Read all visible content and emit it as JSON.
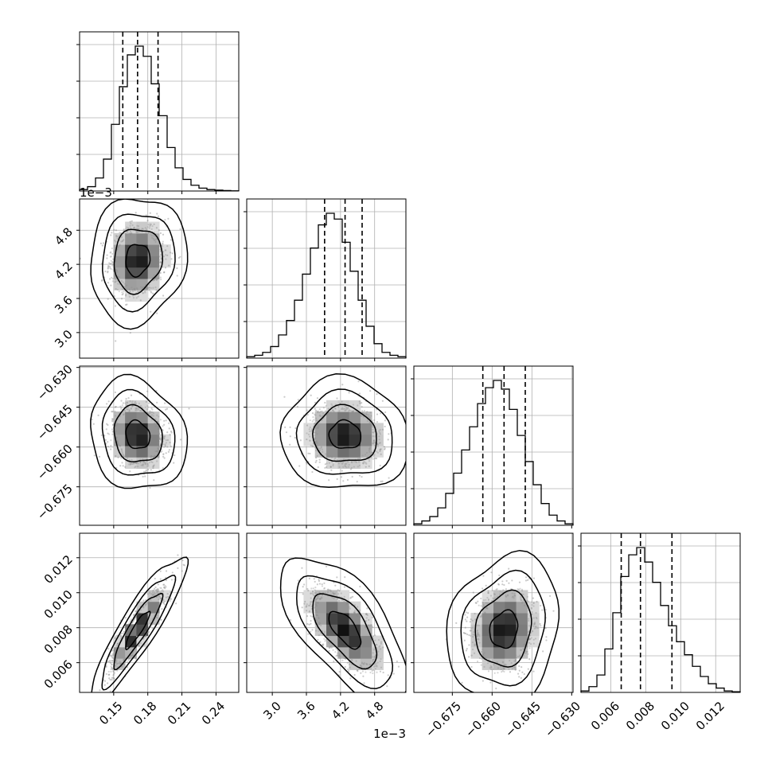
{
  "chart_data": {
    "type": "corner",
    "parameters": [
      {
        "range": [
          0.12,
          0.26
        ],
        "ticks": [
          0.15,
          0.18,
          0.21,
          0.24
        ],
        "tick_labels": [
          "0.15",
          "0.18",
          "0.21",
          "0.24"
        ],
        "offset_text": "",
        "mean": 0.171,
        "sd": 0.0125,
        "quantiles": [
          0.158,
          0.171,
          0.189
        ],
        "histogram": [
          0.01,
          0.03,
          0.09,
          0.22,
          0.46,
          0.72,
          0.94,
          1.0,
          0.93,
          0.74,
          0.52,
          0.3,
          0.16,
          0.08,
          0.04,
          0.02,
          0.01,
          0.006,
          0.003,
          0.001
        ]
      },
      {
        "range": [
          2.55,
          5.35
        ],
        "ticks": [
          3.0,
          3.6,
          4.2,
          4.8
        ],
        "tick_labels": [
          "3.0",
          "3.6",
          "4.2",
          "4.8"
        ],
        "offset_text": "1e−3",
        "mean": 4.28,
        "sd": 0.33,
        "quantiles": [
          3.92,
          4.28,
          4.58
        ],
        "histogram": [
          0.01,
          0.02,
          0.04,
          0.08,
          0.16,
          0.26,
          0.4,
          0.58,
          0.76,
          0.92,
          1.0,
          0.96,
          0.8,
          0.6,
          0.4,
          0.22,
          0.1,
          0.04,
          0.02,
          0.01
        ]
      },
      {
        "range": [
          -0.6895,
          -0.6295
        ],
        "ticks": [
          -0.675,
          -0.66,
          -0.645,
          -0.63
        ],
        "tick_labels": [
          "−0.675",
          "−0.660",
          "−0.645",
          "−0.630"
        ],
        "offset_text": "",
        "mean": -0.6555,
        "sd": 0.0062,
        "quantiles": [
          -0.6635,
          -0.6555,
          -0.6475
        ],
        "histogram": [
          0.01,
          0.03,
          0.06,
          0.12,
          0.22,
          0.36,
          0.52,
          0.68,
          0.84,
          0.95,
          1.0,
          0.94,
          0.8,
          0.62,
          0.44,
          0.28,
          0.15,
          0.07,
          0.03,
          0.01
        ]
      },
      {
        "range": [
          0.0043,
          0.0134
        ],
        "ticks": [
          0.006,
          0.008,
          0.01,
          0.012
        ],
        "tick_labels": [
          "0.006",
          "0.008",
          "0.010",
          "0.012"
        ],
        "offset_text": "",
        "mean": 0.0079,
        "sd": 0.00125,
        "quantiles": [
          0.0066,
          0.0077,
          0.0095
        ],
        "histogram": [
          0.01,
          0.04,
          0.12,
          0.3,
          0.55,
          0.8,
          0.95,
          1.0,
          0.9,
          0.76,
          0.6,
          0.46,
          0.35,
          0.26,
          0.18,
          0.11,
          0.06,
          0.03,
          0.01,
          0.005
        ]
      }
    ],
    "correlations": [
      [
        1,
        0.1,
        -0.15,
        0.9
      ],
      [
        0.1,
        1,
        -0.05,
        -0.65
      ],
      [
        -0.15,
        -0.05,
        1,
        0.15
      ],
      [
        0.9,
        -0.65,
        0.15,
        1
      ]
    ],
    "contour_levels_sigma": [
      0.5,
      1.0,
      1.5,
      2.0
    ],
    "grid": true,
    "colors": {
      "line": "#000000",
      "grid": "#b0b0b0",
      "points": "#8a8a8a"
    }
  }
}
